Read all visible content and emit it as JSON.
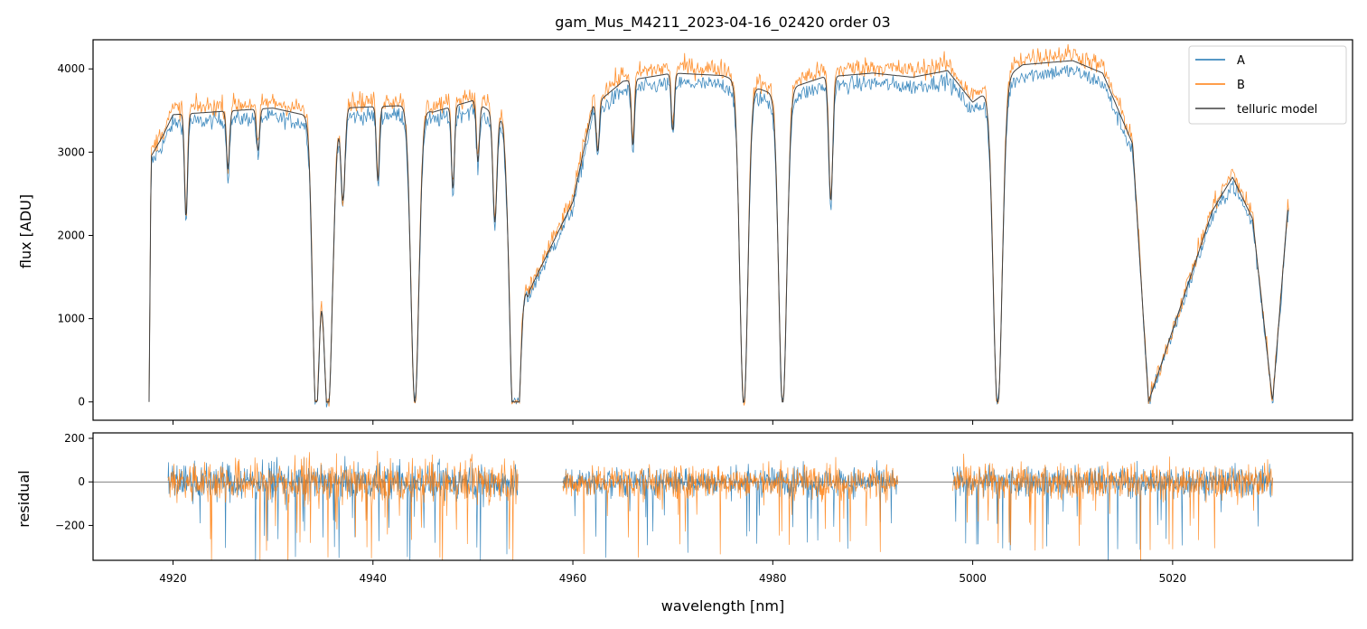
{
  "chart_data": [
    {
      "panel": "spectrum",
      "type": "line",
      "title": "gam_Mus_M4211_2023-04-16_02420  order 03",
      "xlabel": "",
      "ylabel": "flux [ADU]",
      "xlim": [
        4912,
        5038
      ],
      "ylim": [
        -220,
        4350
      ],
      "yticks": [
        0,
        1000,
        2000,
        3000,
        4000
      ],
      "xticks": [
        4920,
        4940,
        4960,
        4980,
        5000,
        5020
      ],
      "grid": false,
      "legend_position": "top-right",
      "colors": {
        "A": "#1f77b4",
        "B": "#ff7f0e",
        "telluric model": "#404040"
      },
      "legend": [
        "A",
        "B",
        "telluric model"
      ],
      "continuum_points": [
        {
          "x": 4917.6,
          "y": 0
        },
        {
          "x": 4917.8,
          "y": 2950
        },
        {
          "x": 4919,
          "y": 3200
        },
        {
          "x": 4920,
          "y": 3450
        },
        {
          "x": 4925,
          "y": 3490
        },
        {
          "x": 4930,
          "y": 3530
        },
        {
          "x": 4933,
          "y": 3450
        },
        {
          "x": 4935,
          "y": 3300
        },
        {
          "x": 4937,
          "y": 3530
        },
        {
          "x": 4943,
          "y": 3560
        },
        {
          "x": 4946,
          "y": 3480
        },
        {
          "x": 4950,
          "y": 3620
        },
        {
          "x": 4953,
          "y": 3400
        },
        {
          "x": 4955.5,
          "y": 1300
        },
        {
          "x": 4960,
          "y": 2400
        },
        {
          "x": 4962,
          "y": 3550
        },
        {
          "x": 4965,
          "y": 3850
        },
        {
          "x": 4970,
          "y": 3950
        },
        {
          "x": 4975,
          "y": 3920
        },
        {
          "x": 4980,
          "y": 3700
        },
        {
          "x": 4985,
          "y": 3900
        },
        {
          "x": 4990,
          "y": 3950
        },
        {
          "x": 4994,
          "y": 3900
        },
        {
          "x": 4997.5,
          "y": 3980
        },
        {
          "x": 5000,
          "y": 3600
        },
        {
          "x": 5005,
          "y": 4050
        },
        {
          "x": 5010,
          "y": 4100
        },
        {
          "x": 5013,
          "y": 3950
        },
        {
          "x": 5016,
          "y": 3100
        },
        {
          "x": 5017.6,
          "y": 0
        },
        {
          "x": 5024,
          "y": 2300
        },
        {
          "x": 5026,
          "y": 2700
        },
        {
          "x": 5028,
          "y": 2200
        },
        {
          "x": 5030,
          "y": 0
        },
        {
          "x": 5031.5,
          "y": 2300
        }
      ],
      "absorption_lines": [
        {
          "x": 4921.3,
          "depth": 1250,
          "width": 0.15
        },
        {
          "x": 4925.5,
          "depth": 700,
          "width": 0.15
        },
        {
          "x": 4928.5,
          "depth": 500,
          "width": 0.15
        },
        {
          "x": 4934.3,
          "depth": 3400,
          "width": 0.35
        },
        {
          "x": 4935.5,
          "depth": 3500,
          "width": 0.45
        },
        {
          "x": 4937,
          "depth": 1100,
          "width": 0.2
        },
        {
          "x": 4940.5,
          "depth": 900,
          "width": 0.15
        },
        {
          "x": 4944.2,
          "depth": 3550,
          "width": 0.4
        },
        {
          "x": 4948,
          "depth": 1000,
          "width": 0.15
        },
        {
          "x": 4950.5,
          "depth": 700,
          "width": 0.15
        },
        {
          "x": 4952.2,
          "depth": 1300,
          "width": 0.2
        },
        {
          "x": 4954.2,
          "depth": 3400,
          "width": 0.45
        },
        {
          "x": 4962.5,
          "depth": 600,
          "width": 0.15
        },
        {
          "x": 4966,
          "depth": 800,
          "width": 0.15
        },
        {
          "x": 4970,
          "depth": 700,
          "width": 0.15
        },
        {
          "x": 4977.1,
          "depth": 3900,
          "width": 0.4
        },
        {
          "x": 4981,
          "depth": 3800,
          "width": 0.4
        },
        {
          "x": 4985.8,
          "depth": 1500,
          "width": 0.2
        },
        {
          "x": 5002.5,
          "depth": 3900,
          "width": 0.45
        }
      ],
      "line_sets": [
        {
          "name": "A",
          "spread": 100
        },
        {
          "name": "B",
          "spread": 120
        }
      ]
    },
    {
      "panel": "residual",
      "type": "line",
      "xlabel": "wavelength [nm]",
      "ylabel": "residual",
      "xlim": [
        4912,
        5038
      ],
      "ylim": [
        -360,
        225
      ],
      "yticks": [
        -200,
        0,
        200
      ],
      "xticks": [
        4920,
        4940,
        4960,
        4980,
        5000,
        5020
      ],
      "grid": false,
      "zero_line": true,
      "segments": [
        {
          "x": [
            4919.5,
            4954.5
          ],
          "amplitude": 70
        },
        {
          "x": [
            4959,
            4992.5
          ],
          "amplitude": 55
        },
        {
          "x": [
            4998,
            5030
          ],
          "amplitude": 60
        }
      ],
      "series": [
        {
          "name": "A",
          "color": "#1f77b4"
        },
        {
          "name": "B",
          "color": "#ff7f0e"
        }
      ]
    }
  ]
}
